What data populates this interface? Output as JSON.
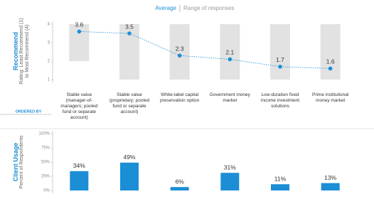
{
  "tabs": {
    "active": "Average",
    "inactive": "Range of responses"
  },
  "ordered_by": "ORDERED BY",
  "chart_data": [
    {
      "type": "range_line",
      "title": "Recommend",
      "y_label": "Rating: Least Recommend (1) to Most Recommend (4)",
      "categories": [
        "Stable value (manager-of-managers; pooled fund or separate account)",
        "Stable value (proprietary; pooled fund or separate account)",
        "White-label capital preservation option",
        "Government money market",
        "Low-duration fixed income investment solutions",
        "Prime institutional money market"
      ],
      "values": [
        3.6,
        3.5,
        2.3,
        2.1,
        1.7,
        1.6
      ],
      "range_low": [
        2,
        1,
        1,
        1,
        1,
        1
      ],
      "range_high": [
        4,
        4,
        4,
        4,
        4,
        4
      ],
      "color": "#1b8ed6",
      "range_color": "#e2e2e2",
      "ylim": [
        1,
        4
      ],
      "yticks": [
        1,
        2,
        3,
        4
      ]
    },
    {
      "type": "bar",
      "title": "Client Usage",
      "y_label": "Percent of Respondents",
      "values": [
        34,
        49,
        6,
        31,
        11,
        13
      ],
      "value_labels": [
        "34%",
        "49%",
        "6%",
        "31%",
        "11%",
        "13%"
      ],
      "color": "#1b8ed6",
      "ylim": [
        0,
        100
      ],
      "yticks": [
        {
          "value": 0,
          "label": "0%"
        },
        {
          "value": 25,
          "label": "25%"
        },
        {
          "value": 50,
          "label": "50%"
        },
        {
          "value": 75,
          "label": "75%"
        },
        {
          "value": 100,
          "label": "100%"
        }
      ]
    }
  ]
}
